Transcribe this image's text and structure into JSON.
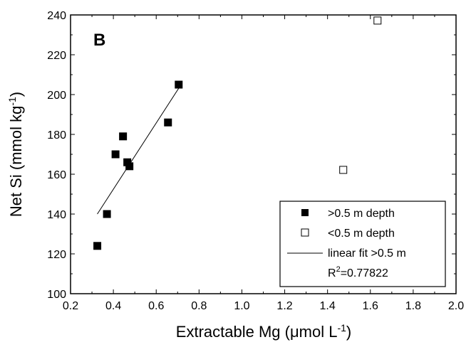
{
  "chart_data": {
    "type": "scatter",
    "panel_label": "B",
    "xlabel": "Extractable Mg (",
    "xlabel_mu": "μ",
    "xlabel_rest": "mol L",
    "xlabel_sup": "-1",
    "xlabel_close": ")",
    "ylabel": "Net Si (mmol kg",
    "ylabel_sup": "-1",
    "ylabel_close": ")",
    "xlim": [
      0.2,
      2.0
    ],
    "ylim": [
      100,
      240
    ],
    "xticks": [
      "0.2",
      "0.4",
      "0.6",
      "0.8",
      "1.0",
      "1.2",
      "1.4",
      "1.6",
      "1.8",
      "2.0"
    ],
    "yticks": [
      "100",
      "120",
      "140",
      "160",
      "180",
      "200",
      "220",
      "240"
    ],
    "grid": false,
    "legend_position": "bottom-right",
    "series": [
      {
        "name": ">0.5 m depth",
        "marker": "filled-square",
        "points": [
          {
            "x": 0.325,
            "y": 124
          },
          {
            "x": 0.37,
            "y": 140
          },
          {
            "x": 0.41,
            "y": 170
          },
          {
            "x": 0.445,
            "y": 179
          },
          {
            "x": 0.465,
            "y": 166
          },
          {
            "x": 0.475,
            "y": 164
          },
          {
            "x": 0.655,
            "y": 186
          },
          {
            "x": 0.705,
            "y": 205
          }
        ]
      },
      {
        "name": "<0.5 m depth",
        "marker": "open-square",
        "points": [
          {
            "x": 1.475,
            "y": 162
          },
          {
            "x": 1.635,
            "y": 237
          }
        ]
      },
      {
        "name": "linear fit >0.5 m",
        "type": "line",
        "points": [
          {
            "x": 0.325,
            "y": 140
          },
          {
            "x": 0.71,
            "y": 204
          }
        ]
      }
    ],
    "annotation_r2_prefix": "R",
    "annotation_r2_sup": "2",
    "annotation_r2_value": "=0.77822"
  }
}
